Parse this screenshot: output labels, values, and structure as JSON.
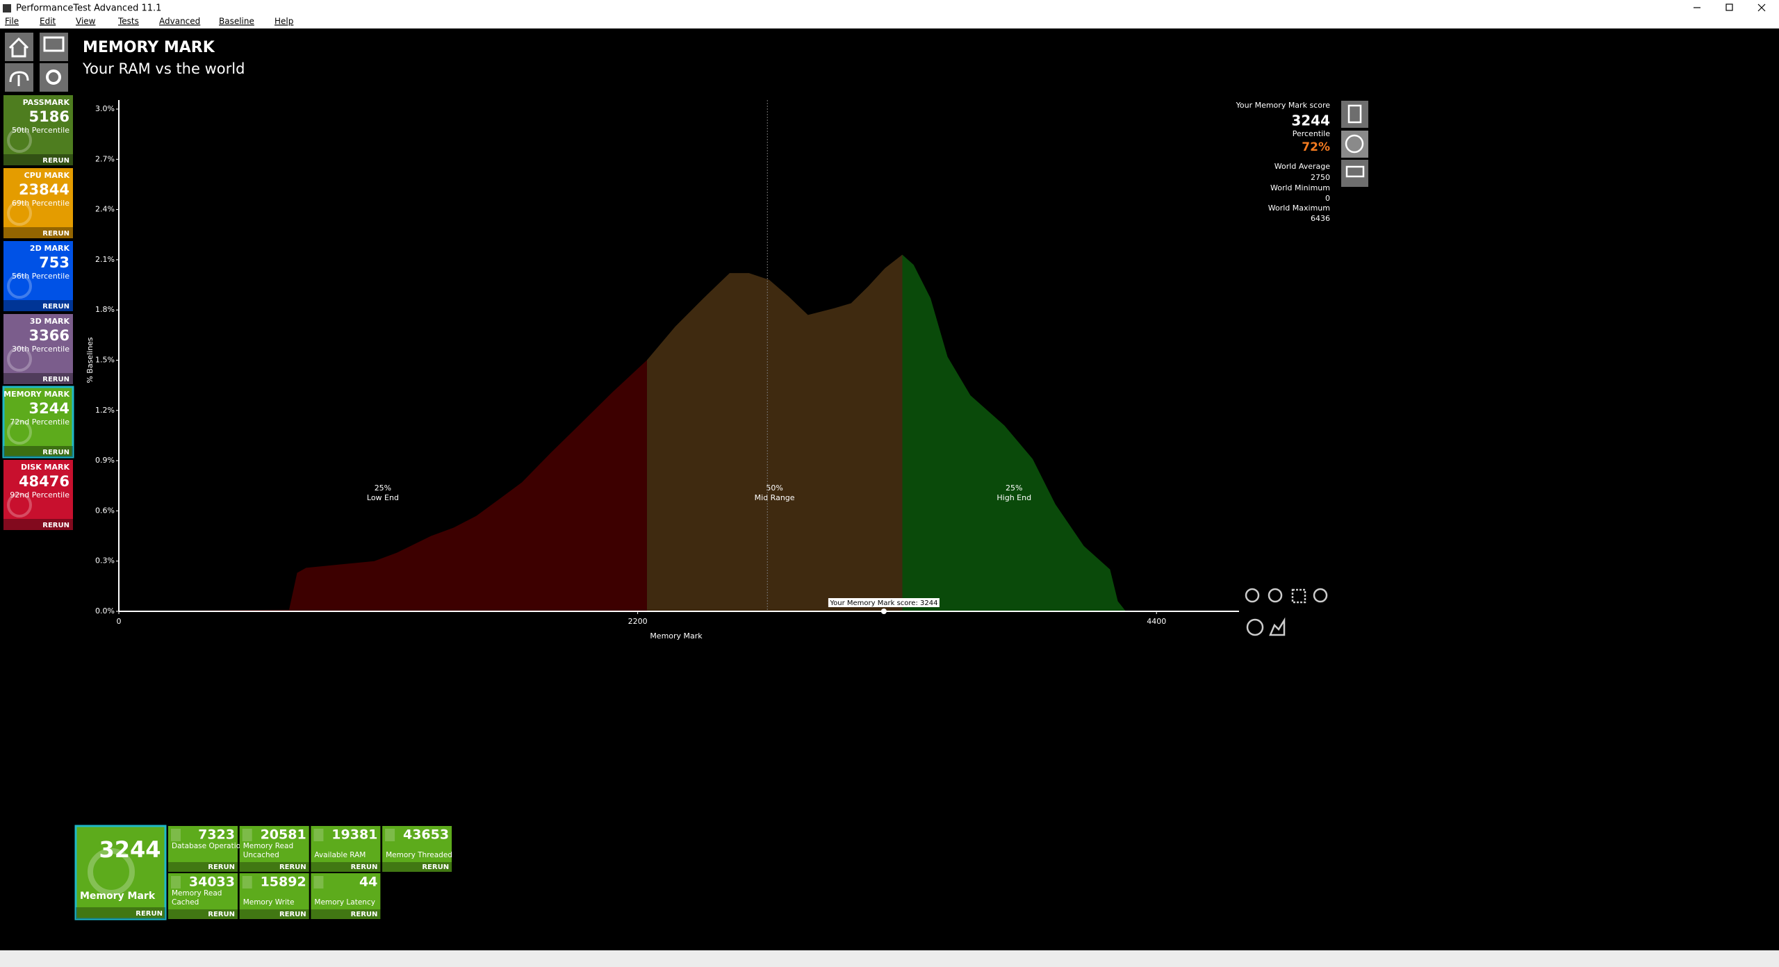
{
  "window": {
    "title": "PerformanceTest Advanced 11.1"
  },
  "menu": [
    "File",
    "Edit",
    "View",
    "Tests",
    "Advanced",
    "Baseline",
    "Help"
  ],
  "sidebar": [
    {
      "label": "PASSMARK",
      "score": 5186,
      "percentile": "50th Percentile",
      "action": "RERUN"
    },
    {
      "label": "CPU MARK",
      "score": 23844,
      "percentile": "69th Percentile",
      "action": "RERUN"
    },
    {
      "label": "2D MARK",
      "score": 753,
      "percentile": "56th Percentile",
      "action": "RERUN"
    },
    {
      "label": "3D MARK",
      "score": 3366,
      "percentile": "30th Percentile",
      "action": "RERUN"
    },
    {
      "label": "MEMORY MARK",
      "score": 3244,
      "percentile": "72nd Percentile",
      "action": "RERUN"
    },
    {
      "label": "DISK MARK",
      "score": 48476,
      "percentile": "92nd Percentile",
      "action": "RERUN"
    }
  ],
  "header": {
    "title": "MEMORY MARK",
    "subtitle": "Your RAM vs the world"
  },
  "chart_data": {
    "type": "area",
    "x": [
      0,
      722,
      756,
      794,
      939,
      1083,
      1179,
      1324,
      1420,
      1516,
      1613,
      1709,
      1834,
      1950,
      2094,
      2239,
      2359,
      2479,
      2590,
      2672,
      2758,
      2840,
      2922,
      3033,
      3105,
      3177,
      3249,
      3322,
      3370,
      3442,
      3514,
      3611,
      3755,
      3875,
      3971,
      4092,
      4203,
      4236,
      4270
    ],
    "series": [
      {
        "values": [
          0,
          0.01,
          0.23,
          0.26,
          0.28,
          0.3,
          0.35,
          0.45,
          0.5,
          0.57,
          0.67,
          0.77,
          0.95,
          1.11,
          1.31,
          1.5,
          1.7,
          1.87,
          2.02,
          2.02,
          1.98,
          1.88,
          1.77,
          1.81,
          1.84,
          1.94,
          2.05,
          2.13,
          2.07,
          1.87,
          1.52,
          1.29,
          1.11,
          0.91,
          0.64,
          0.39,
          0.25,
          0.06,
          0
        ]
      }
    ],
    "regions": [
      {
        "end": 2239,
        "color": "#3d0000",
        "share": "25%",
        "label": "Low End"
      },
      {
        "end": 3322,
        "color": "#3f2a10",
        "share": "50%",
        "label": "Mid Range"
      },
      {
        "end": 4270,
        "color": "#0a4a0a",
        "share": "25%",
        "label": "High End"
      }
    ],
    "xlim": [
      0,
      4750
    ],
    "ylim": [
      0,
      3.0
    ],
    "xticks": [
      0,
      2200,
      4400
    ],
    "yticks": [
      {
        "value": 0,
        "label": "0.0%"
      },
      {
        "value": 0.3,
        "label": "0.3%"
      },
      {
        "value": 0.6,
        "label": "0.6%"
      },
      {
        "value": 0.9,
        "label": "0.9%"
      },
      {
        "value": 1.2,
        "label": "1.2%"
      },
      {
        "value": 1.5,
        "label": "1.5%"
      },
      {
        "value": 1.8,
        "label": "1.8%"
      },
      {
        "value": 2.1,
        "label": "2.1%"
      },
      {
        "value": 2.4,
        "label": "2.4%"
      },
      {
        "value": 2.7,
        "label": "2.7%"
      },
      {
        "value": 3.0,
        "label": "3.0%"
      }
    ],
    "x_label": "Memory Mark",
    "y_label": "% Baselines",
    "average_line": 2750,
    "marker": {
      "value": 3244,
      "label": "Your Memory Mark score: 3244"
    }
  },
  "score_panel": {
    "score_label": "Your Memory Mark score",
    "score": 3244,
    "percentile_label": "Percentile",
    "percentile": "72%",
    "average_label": "World Average",
    "average": 2750,
    "minimum_label": "World Minimum",
    "minimum": 0,
    "maximum_label": "World Maximum",
    "maximum": 6436
  },
  "bottom": {
    "main": {
      "score": 3244,
      "label": "Memory Mark",
      "action": "RERUN"
    },
    "tests": [
      {
        "score": 7323,
        "label": "Database Operations",
        "action": "RERUN"
      },
      {
        "score": 20581,
        "label": "Memory Read Uncached",
        "action": "RERUN"
      },
      {
        "score": 19381,
        "label": "Available RAM",
        "action": "RERUN"
      },
      {
        "score": 43653,
        "label": "Memory Threaded",
        "action": "RERUN"
      },
      {
        "score": 34033,
        "label": "Memory Read Cached",
        "action": "RERUN"
      },
      {
        "score": 15892,
        "label": "Memory Write",
        "action": "RERUN"
      },
      {
        "score": 44,
        "label": "Memory Latency",
        "action": "RERUN"
      }
    ]
  }
}
